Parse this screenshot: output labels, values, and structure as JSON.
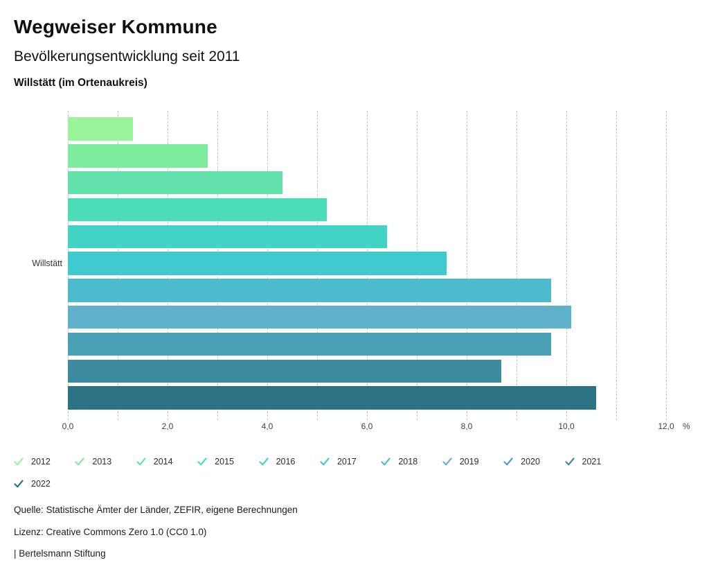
{
  "chart_data": {
    "type": "bar",
    "orientation": "horizontal",
    "title": "Wegweiser Kommune",
    "subtitle": "Bevölkerungsentwicklung seit 2011",
    "location_label": "Willstätt (im Ortenaukreis)",
    "category": "Willstätt",
    "unit": "%",
    "xlim": [
      0,
      12
    ],
    "gridline_step": 1,
    "grid": "dashed-vertical",
    "legend_position": "bottom",
    "x_ticks": [
      {
        "value": 0,
        "label": "0,0"
      },
      {
        "value": 2,
        "label": "2,0"
      },
      {
        "value": 4,
        "label": "4,0"
      },
      {
        "value": 6,
        "label": "6,0"
      },
      {
        "value": 8,
        "label": "8,0"
      },
      {
        "value": 10,
        "label": "10,0"
      },
      {
        "value": 12,
        "label": "12,0"
      }
    ],
    "series": [
      {
        "name": "2012",
        "value": 1.3,
        "color": "#9af49a"
      },
      {
        "name": "2013",
        "value": 2.8,
        "color": "#7dec9e"
      },
      {
        "name": "2014",
        "value": 4.3,
        "color": "#63e2ab"
      },
      {
        "name": "2015",
        "value": 5.2,
        "color": "#4cdbb8"
      },
      {
        "name": "2016",
        "value": 6.4,
        "color": "#41d4c5"
      },
      {
        "name": "2017",
        "value": 7.6,
        "color": "#3fc8ce"
      },
      {
        "name": "2018",
        "value": 9.7,
        "color": "#4dbbce"
      },
      {
        "name": "2019",
        "value": 10.1,
        "color": "#5fb2c9"
      },
      {
        "name": "2020",
        "value": 9.7,
        "color": "#4aa0b5"
      },
      {
        "name": "2021",
        "value": 8.7,
        "color": "#3c8ba0"
      },
      {
        "name": "2022",
        "value": 10.6,
        "color": "#2b7383"
      }
    ]
  },
  "footer": {
    "source": "Quelle: Statistische Ämter der Länder, ZEFIR, eigene Berechnungen",
    "license": "Lizenz: Creative Commons Zero 1.0 (CC0 1.0)",
    "attribution": "| Bertelsmann Stiftung"
  }
}
